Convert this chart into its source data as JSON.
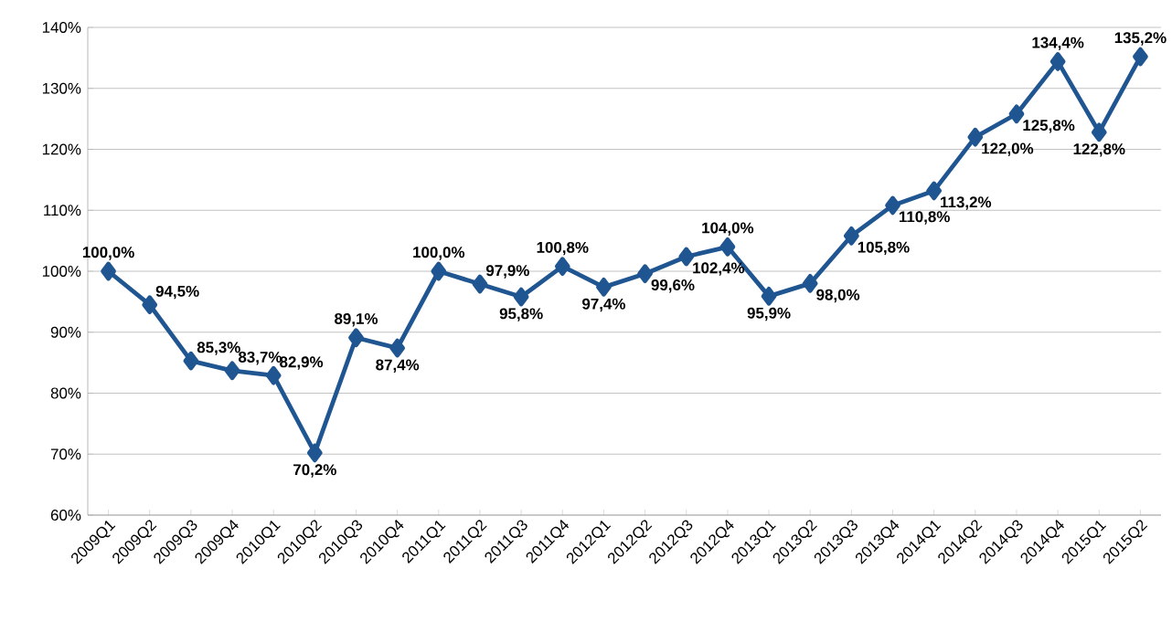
{
  "chart_data": {
    "type": "line",
    "categories": [
      "2009Q1",
      "2009Q2",
      "2009Q3",
      "2009Q4",
      "2010Q1",
      "2010Q2",
      "2010Q3",
      "2010Q4",
      "2011Q1",
      "2011Q2",
      "2011Q3",
      "2011Q4",
      "2012Q1",
      "2012Q2",
      "2012Q3",
      "2012Q4",
      "2013Q1",
      "2013Q2",
      "2013Q3",
      "2013Q4",
      "2014Q1",
      "2014Q2",
      "2014Q3",
      "2014Q4",
      "2015Q1",
      "2015Q2"
    ],
    "values": [
      100.0,
      94.5,
      85.3,
      83.7,
      82.9,
      70.2,
      89.1,
      87.4,
      100.0,
      97.9,
      95.8,
      100.8,
      97.4,
      99.6,
      102.4,
      104.0,
      95.9,
      98.0,
      105.8,
      110.8,
      113.2,
      122.0,
      125.8,
      134.4,
      122.8,
      135.2
    ],
    "value_labels": [
      "100,0%",
      "94,5%",
      "85,3%",
      "83,7%",
      "82,9%",
      "70,2%",
      "89,1%",
      "87,4%",
      "100,0%",
      "97,9%",
      "95,8%",
      "100,8%",
      "97,4%",
      "99,6%",
      "102,4%",
      "104,0%",
      "95,9%",
      "98,0%",
      "105,8%",
      "110,8%",
      "113,2%",
      "122,0%",
      "125,8%",
      "134,4%",
      "122,8%",
      "135,2%"
    ],
    "color": "#1f5591",
    "ylim": [
      60,
      140
    ],
    "yticks": [
      {
        "value": 60,
        "label": "60%"
      },
      {
        "value": 70,
        "label": "70%"
      },
      {
        "value": 80,
        "label": "80%"
      },
      {
        "value": 90,
        "label": "90%"
      },
      {
        "value": 100,
        "label": "100%"
      },
      {
        "value": 110,
        "label": "110%"
      },
      {
        "value": 120,
        "label": "120%"
      },
      {
        "value": 130,
        "label": "130%"
      },
      {
        "value": 140,
        "label": "140%"
      }
    ],
    "grid": "y",
    "marker": "diamond",
    "line_style": "solid"
  }
}
